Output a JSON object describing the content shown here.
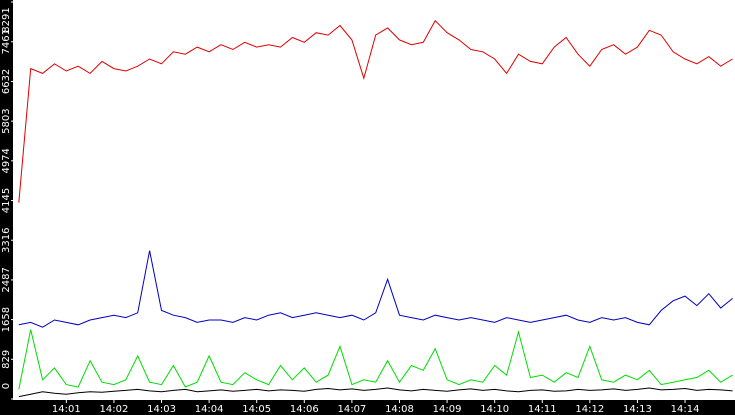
{
  "chart_data": {
    "type": "line",
    "x": [
      0,
      0.25,
      0.5,
      0.75,
      1,
      1.25,
      1.5,
      1.75,
      2,
      2.25,
      2.5,
      2.75,
      3,
      3.25,
      3.5,
      3.75,
      4,
      4.25,
      4.5,
      4.75,
      5,
      5.25,
      5.5,
      5.75,
      6,
      6.25,
      6.5,
      6.75,
      7,
      7.25,
      7.5,
      7.75,
      8,
      8.25,
      8.5,
      8.75,
      9,
      9.25,
      9.5,
      9.75,
      10,
      10.25,
      10.5,
      10.75,
      11,
      11.25,
      11.5,
      11.75,
      12,
      12.25,
      12.5,
      12.75,
      13,
      13.25,
      13.5,
      13.75,
      14,
      14.25,
      14.5,
      14.75,
      15
    ],
    "series": [
      {
        "color": "#e00000",
        "values": [
          4100,
          6900,
          6800,
          7000,
          6850,
          6950,
          6800,
          7050,
          6900,
          6850,
          6950,
          7100,
          7000,
          7250,
          7200,
          7350,
          7250,
          7400,
          7300,
          7450,
          7350,
          7400,
          7350,
          7550,
          7450,
          7650,
          7600,
          7800,
          7500,
          6700,
          7600,
          7750,
          7500,
          7400,
          7450,
          7900,
          7650,
          7500,
          7300,
          7250,
          7100,
          6800,
          7200,
          7050,
          7000,
          7350,
          7550,
          7200,
          6950,
          7300,
          7400,
          7200,
          7350,
          7700,
          7600,
          7250,
          7100,
          7000,
          7150,
          6950,
          7100
        ]
      },
      {
        "color": "#0000c0",
        "values": [
          1550,
          1600,
          1500,
          1650,
          1600,
          1550,
          1650,
          1700,
          1750,
          1700,
          1800,
          3100,
          1850,
          1750,
          1700,
          1600,
          1650,
          1650,
          1600,
          1700,
          1650,
          1750,
          1800,
          1700,
          1750,
          1800,
          1750,
          1700,
          1750,
          1650,
          1800,
          2500,
          1750,
          1700,
          1650,
          1750,
          1700,
          1650,
          1700,
          1650,
          1600,
          1700,
          1650,
          1600,
          1650,
          1700,
          1750,
          1650,
          1600,
          1700,
          1650,
          1700,
          1600,
          1550,
          1850,
          2050,
          2150,
          1950,
          2200,
          1900,
          2100
        ]
      },
      {
        "color": "#00dd00",
        "values": [
          200,
          1450,
          400,
          650,
          300,
          250,
          800,
          350,
          300,
          400,
          900,
          350,
          300,
          700,
          250,
          350,
          900,
          350,
          300,
          550,
          400,
          300,
          700,
          400,
          650,
          350,
          500,
          1100,
          300,
          400,
          350,
          800,
          350,
          700,
          600,
          1050,
          400,
          300,
          400,
          350,
          700,
          500,
          1400,
          450,
          500,
          350,
          550,
          450,
          1100,
          400,
          350,
          500,
          400,
          600,
          300,
          350,
          400,
          450,
          600,
          350,
          500
        ]
      },
      {
        "color": "#000000",
        "values": [
          50,
          100,
          150,
          120,
          100,
          130,
          150,
          140,
          160,
          180,
          200,
          170,
          150,
          180,
          200,
          150,
          170,
          190,
          160,
          180,
          200,
          170,
          190,
          180,
          160,
          200,
          220,
          190,
          210,
          180,
          200,
          230,
          190,
          170,
          200,
          180,
          160,
          190,
          210,
          180,
          200,
          170,
          150,
          180,
          190,
          160,
          170,
          200,
          180,
          190,
          210,
          180,
          200,
          230,
          190,
          200,
          220,
          180,
          200,
          190,
          170
        ]
      }
    ],
    "xlim": [
      -0.1,
      15.05
    ],
    "xticks": [
      {
        "value": 1,
        "label": "14:01"
      },
      {
        "value": 2,
        "label": "14:02"
      },
      {
        "value": 3,
        "label": "14:03"
      },
      {
        "value": 4,
        "label": "14:04"
      },
      {
        "value": 5,
        "label": "14:05"
      },
      {
        "value": 6,
        "label": "14:06"
      },
      {
        "value": 7,
        "label": "14:07"
      },
      {
        "value": 8,
        "label": "14:08"
      },
      {
        "value": 9,
        "label": "14:09"
      },
      {
        "value": 10,
        "label": "14:10"
      },
      {
        "value": 11,
        "label": "14:11"
      },
      {
        "value": 12,
        "label": "14:12"
      },
      {
        "value": 13,
        "label": "14:13"
      },
      {
        "value": 14,
        "label": "14:14"
      }
    ],
    "ylim": [
      0,
      8291
    ],
    "yticks": [
      0,
      829,
      1658,
      2487,
      3316,
      4145,
      4974,
      5803,
      6632,
      7461,
      8291
    ]
  }
}
